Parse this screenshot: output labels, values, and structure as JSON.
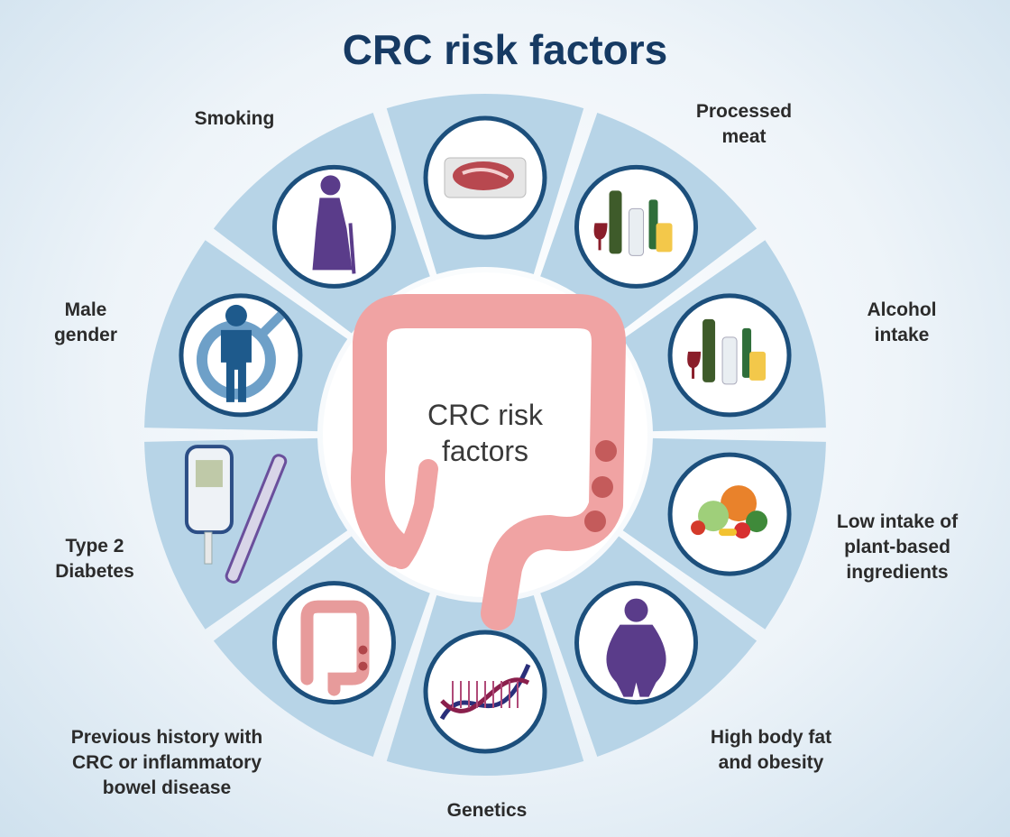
{
  "title": "CRC risk factors",
  "center_label": "CRC risk\nfactors",
  "colors": {
    "title": "#163a63",
    "segment": "#b7d4e7",
    "icon_ring": "#1c4f7c",
    "colon": "#f0a3a3"
  },
  "factors": [
    {
      "label": "Processed\nmeat",
      "icon": "meat-icon"
    },
    {
      "label": "Alcohol\nintake",
      "icon": "alcohol-icon"
    },
    {
      "label": "Low intake of\nplant-based\ningredients",
      "icon": "vegetables-icon"
    },
    {
      "label": "High body fat\nand obesity",
      "icon": "obesity-icon"
    },
    {
      "label": "Genetics",
      "icon": "dna-icon"
    },
    {
      "label": "Previous history with\nCRC or inflammatory\nbowel disease",
      "icon": "colon-icon"
    },
    {
      "label": "Type 2\nDiabetes",
      "icon": "glucose-meter-icon"
    },
    {
      "label": "Male\ngender",
      "icon": "male-icon"
    },
    {
      "label": "Smoking",
      "icon": "elderly-person-icon"
    }
  ]
}
